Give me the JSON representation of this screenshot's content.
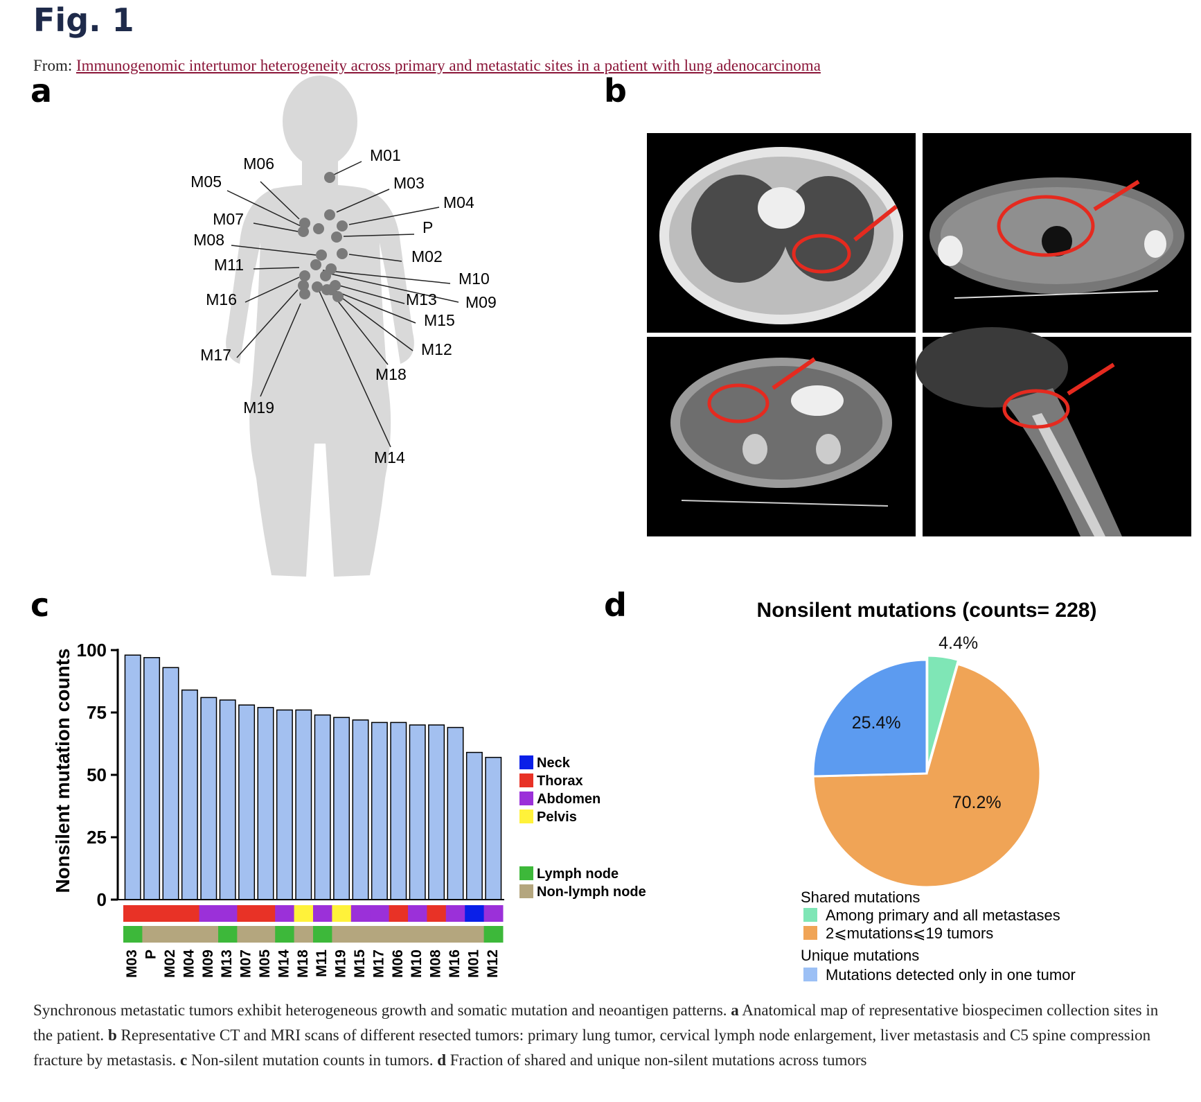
{
  "figure": {
    "title": "Fig. 1",
    "from_prefix": "From: ",
    "article_title": "Immunogenomic intertumor heterogeneity across primary and metastatic sites in a patient with lung adenocarcinoma"
  },
  "panels": {
    "a": {
      "letter": "a"
    },
    "b": {
      "letter": "b"
    },
    "c": {
      "letter": "c"
    },
    "d": {
      "letter": "d"
    }
  },
  "body_map": {
    "labels": [
      "M01",
      "M03",
      "M04",
      "P",
      "M02",
      "M10",
      "M09",
      "M13",
      "M15",
      "M12",
      "M18",
      "M14",
      "M06",
      "M05",
      "M07",
      "M08",
      "M11",
      "M16",
      "M17",
      "M19"
    ]
  },
  "chart_data": [
    {
      "type": "bar",
      "ylabel": "Nonsilent mutation counts",
      "ylim": [
        0,
        100
      ],
      "yticks": [
        "0",
        "25",
        "50",
        "75",
        "100"
      ],
      "categories": [
        "M03",
        "P",
        "M02",
        "M04",
        "M09",
        "M13",
        "M07",
        "M05",
        "M14",
        "M18",
        "M11",
        "M19",
        "M15",
        "M17",
        "M06",
        "M10",
        "M08",
        "M16",
        "M01",
        "M12"
      ],
      "values": [
        98,
        97,
        93,
        84,
        81,
        80,
        78,
        77,
        76,
        76,
        74,
        73,
        72,
        71,
        71,
        70,
        70,
        69,
        59,
        57
      ],
      "bar_color": "#a3c0f0",
      "region": [
        "Thorax",
        "Thorax",
        "Thorax",
        "Thorax",
        "Abdomen",
        "Abdomen",
        "Thorax",
        "Thorax",
        "Abdomen",
        "Pelvis",
        "Abdomen",
        "Pelvis",
        "Abdomen",
        "Abdomen",
        "Thorax",
        "Abdomen",
        "Thorax",
        "Abdomen",
        "Neck",
        "Abdomen"
      ],
      "node": [
        "Lymph node",
        "Non-lymph node",
        "Non-lymph node",
        "Non-lymph node",
        "Non-lymph node",
        "Lymph node",
        "Non-lymph node",
        "Non-lymph node",
        "Lymph node",
        "Non-lymph node",
        "Lymph node",
        "Non-lymph node",
        "Non-lymph node",
        "Non-lymph node",
        "Non-lymph node",
        "Non-lymph node",
        "Non-lymph node",
        "Non-lymph node",
        "Non-lymph node",
        "Lymph node"
      ],
      "legend_region": [
        {
          "label": "Neck",
          "color": "#0a1fe8"
        },
        {
          "label": "Thorax",
          "color": "#e83226"
        },
        {
          "label": "Abdomen",
          "color": "#9b30d9"
        },
        {
          "label": "Pelvis",
          "color": "#fff23a"
        }
      ],
      "legend_node": [
        {
          "label": "Lymph node",
          "color": "#3db83a"
        },
        {
          "label": "Non-lymph node",
          "color": "#b4a67e"
        }
      ]
    },
    {
      "type": "pie",
      "title": "Nonsilent mutations (counts= 228)",
      "slices": [
        {
          "label": "4.4%",
          "value": 4.4,
          "color": "#7fe6b6"
        },
        {
          "label": "70.2%",
          "value": 70.2,
          "color": "#f0a456"
        },
        {
          "label": "25.4%",
          "value": 25.4,
          "color": "#5c9bf0"
        }
      ],
      "legend": {
        "shared_heading": "Shared mutations",
        "shared_items": [
          {
            "label": "Among primary and all metastases",
            "color": "#7fe6b6"
          },
          {
            "label": "2⩽mutations⩽19 tumors",
            "color": "#f0a456"
          }
        ],
        "unique_heading": "Unique mutations",
        "unique_items": [
          {
            "label": "Mutations detected only in one tumor",
            "color": "#9cc0f5"
          }
        ]
      }
    }
  ],
  "caption": {
    "lead": "Synchronous metastatic tumors exhibit heterogeneous growth and somatic mutation and neoantigen patterns. ",
    "a_key": "a",
    "a_text": " Anatomical map of representative biospecimen collection sites in the patient. ",
    "b_key": "b",
    "b_text": " Representative CT and MRI scans of different resected tumors: primary lung tumor, cervical lymph node enlargement, liver metastasis and C5 spine compression fracture by metastasis. ",
    "c_key": "c",
    "c_text": " Non-silent mutation counts in tumors. ",
    "d_key": "d",
    "d_text": " Fraction of shared and unique non-silent mutations across tumors"
  }
}
